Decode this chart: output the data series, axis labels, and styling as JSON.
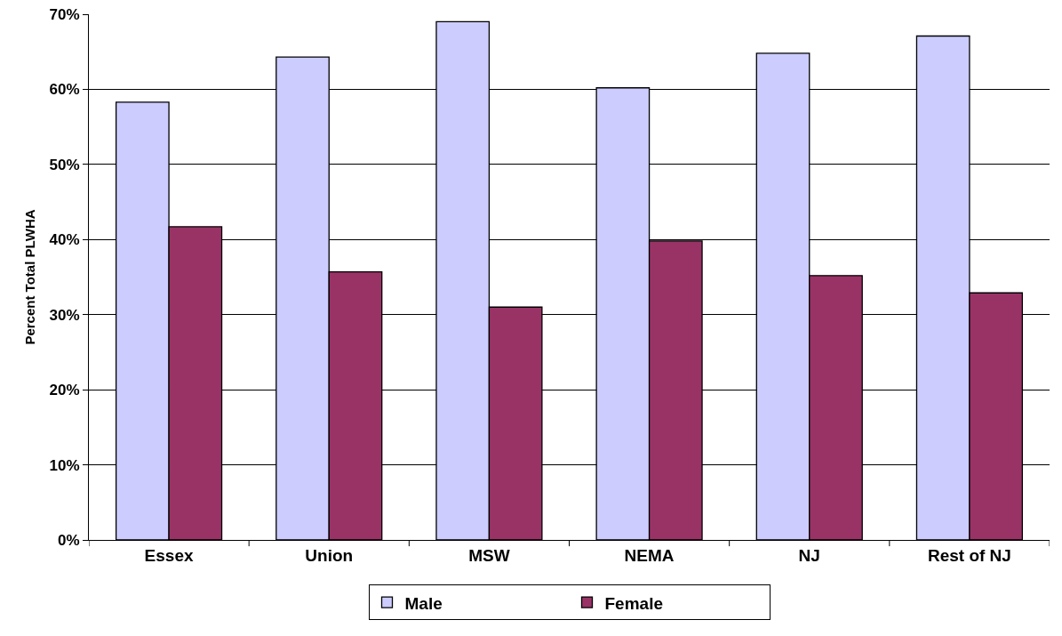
{
  "chart_data": {
    "type": "bar",
    "ylabel": "Percent Total PLWHA",
    "categories": [
      "Essex",
      "Union",
      "MSW",
      "NEMA",
      "NJ",
      "Rest of NJ"
    ],
    "series": [
      {
        "name": "Male",
        "color": "#ccccff",
        "values": [
          58.3,
          64.3,
          69.0,
          60.2,
          64.8,
          67.1
        ]
      },
      {
        "name": "Female",
        "color": "#993366",
        "values": [
          41.7,
          35.7,
          31.0,
          39.8,
          35.2,
          32.9
        ]
      }
    ],
    "ylim": [
      0,
      70
    ],
    "yticks": [
      {
        "value": 0,
        "label": "0%"
      },
      {
        "value": 10,
        "label": "10%"
      },
      {
        "value": 20,
        "label": "20%"
      },
      {
        "value": 30,
        "label": "30%"
      },
      {
        "value": 40,
        "label": "40%"
      },
      {
        "value": 50,
        "label": "50%"
      },
      {
        "value": 60,
        "label": "60%"
      },
      {
        "value": 70,
        "label": "70%"
      }
    ],
    "grid": "y",
    "legend": "bottom"
  }
}
